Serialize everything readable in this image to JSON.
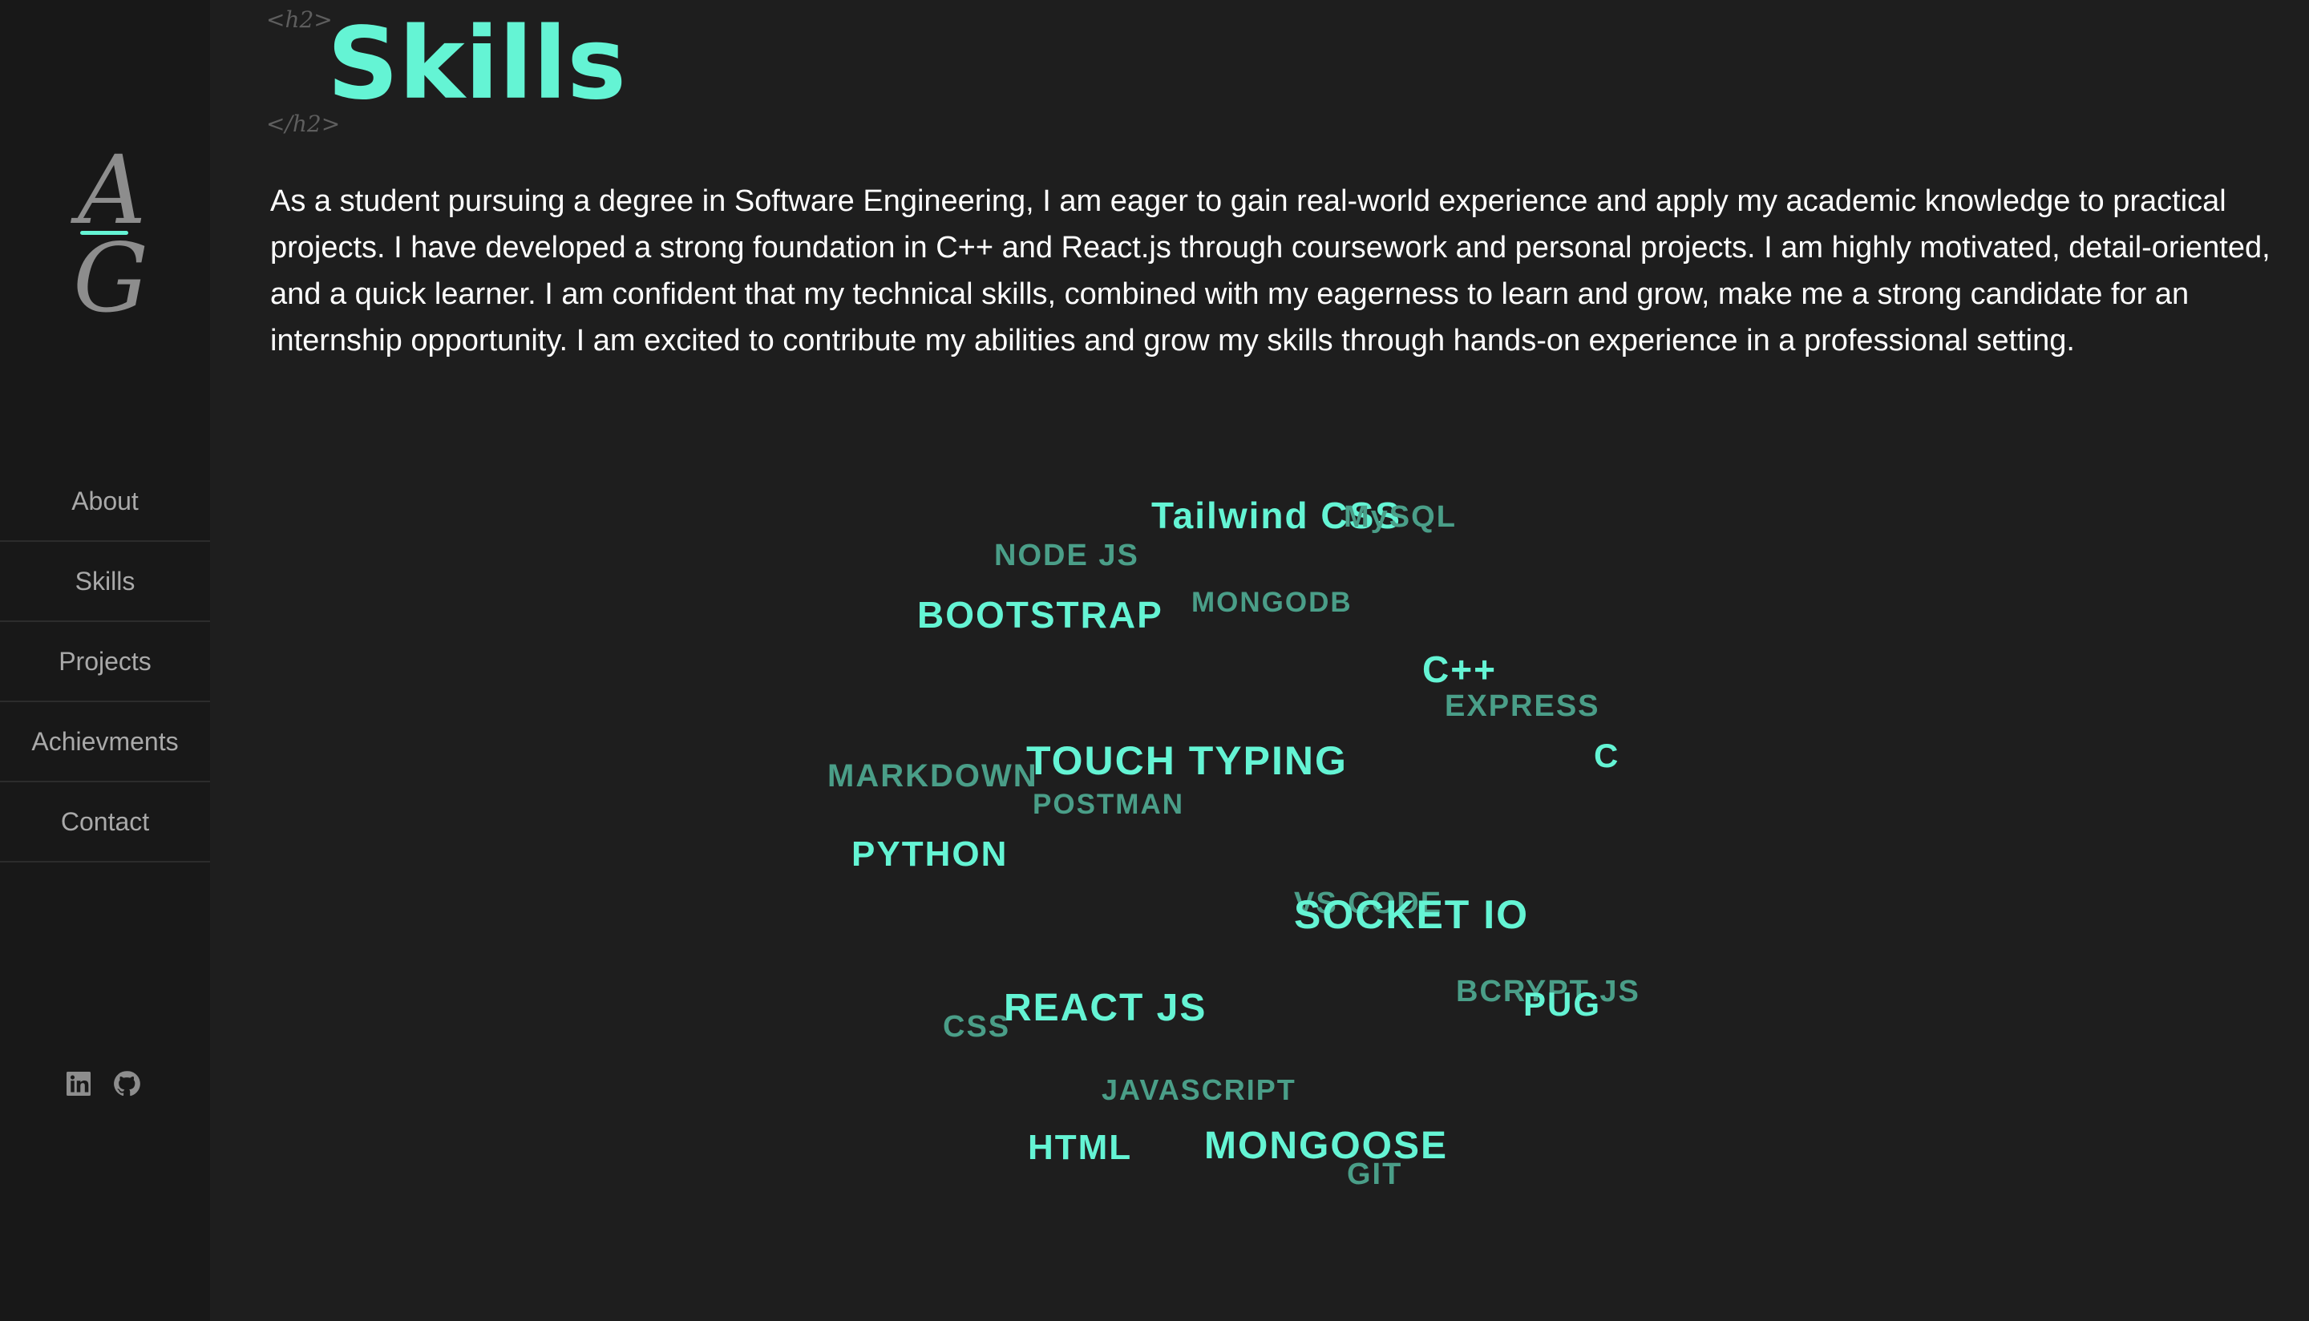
{
  "logo": {
    "top_letter": "A",
    "bottom_letter": "G"
  },
  "nav": {
    "items": [
      {
        "label": "About"
      },
      {
        "label": "Skills"
      },
      {
        "label": "Projects"
      },
      {
        "label": "Achievments"
      },
      {
        "label": "Contact"
      }
    ]
  },
  "social": [
    {
      "icon": "linkedin-icon"
    },
    {
      "icon": "github-icon"
    }
  ],
  "heading": {
    "open_tag": "<h2>",
    "title": "Skills",
    "close_tag": "</h2>"
  },
  "intro": "As a student pursuing a degree in Software Engineering, I am eager to gain real-world experience and apply my academic knowledge to practical projects. I have developed a strong foundation in C++ and React.js through coursework and personal projects. I am highly motivated, detail-oriented, and a quick learner. I am confident that my technical skills, combined with my eagerness to learn and grow, make me a strong candidate for an internship opportunity. I am excited to contribute my abilities and grow my skills through hands-on experience in a professional setting.",
  "skills": [
    {
      "label": "Tailwind CSS",
      "emphasis": "bright"
    },
    {
      "label": "MySQL",
      "emphasis": "dim"
    },
    {
      "label": "NODE JS",
      "emphasis": "dim"
    },
    {
      "label": "BOOTSTRAP",
      "emphasis": "bright"
    },
    {
      "label": "MONGODB",
      "emphasis": "dim"
    },
    {
      "label": "C++",
      "emphasis": "bright"
    },
    {
      "label": "EXPRESS",
      "emphasis": "dim"
    },
    {
      "label": "C",
      "emphasis": "bright"
    },
    {
      "label": "MARKDOWN",
      "emphasis": "dim"
    },
    {
      "label": "TOUCH TYPING",
      "emphasis": "bright"
    },
    {
      "label": "POSTMAN",
      "emphasis": "dim"
    },
    {
      "label": "PYTHON",
      "emphasis": "bright"
    },
    {
      "label": "VS CODE",
      "emphasis": "dim"
    },
    {
      "label": "SOCKET IO",
      "emphasis": "bright"
    },
    {
      "label": "BCRYPT JS",
      "emphasis": "dim"
    },
    {
      "label": "PUG",
      "emphasis": "bright"
    },
    {
      "label": "CSS",
      "emphasis": "dim"
    },
    {
      "label": "REACT JS",
      "emphasis": "bright"
    },
    {
      "label": "JAVASCRIPT",
      "emphasis": "dim"
    },
    {
      "label": "HTML",
      "emphasis": "bright"
    },
    {
      "label": "MONGOOSE",
      "emphasis": "bright"
    },
    {
      "label": "GIT",
      "emphasis": "dim"
    }
  ],
  "colors": {
    "accent": "#64f4d4",
    "accent_dim": "#4a9e88",
    "background": "#1e1e1e",
    "sidebar": "#181818",
    "nav_text": "#a9a9a9"
  }
}
